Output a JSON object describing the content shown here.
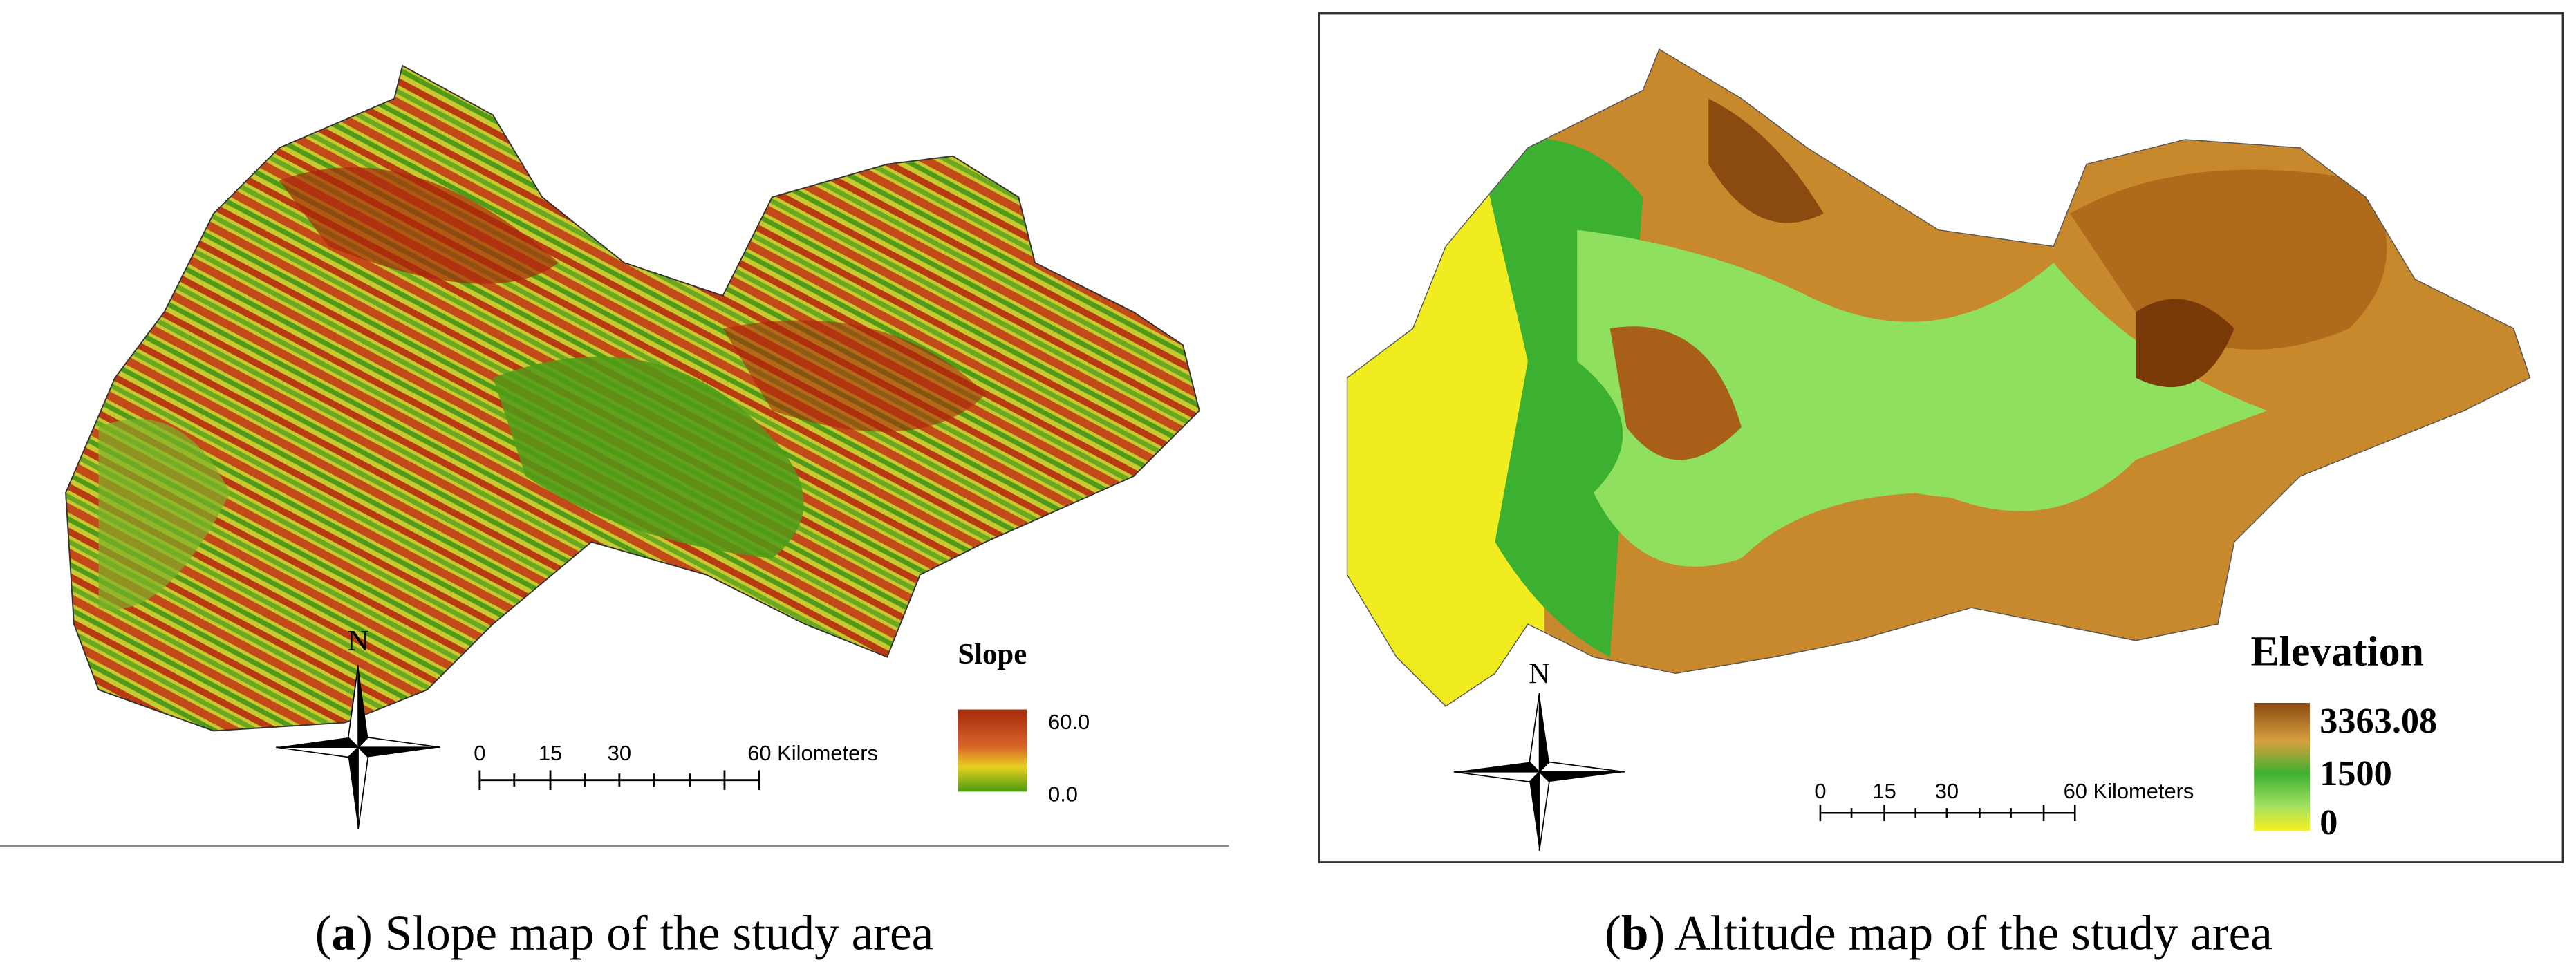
{
  "panel_a": {
    "legend": {
      "title": "Slope",
      "high": "60.0",
      "low": "0.0"
    },
    "north": "N",
    "scale": {
      "ticks": [
        "0",
        "15",
        "30"
      ],
      "end": "60 Kilometers"
    },
    "caption": {
      "open": "(",
      "letter": "a",
      "text": ") Slope map of the study area"
    }
  },
  "panel_b": {
    "legend": {
      "title": "Elevation",
      "high": "3363.08",
      "mid": "1500",
      "low": "0"
    },
    "north": "N",
    "scale": {
      "ticks": [
        "0",
        "15",
        "30"
      ],
      "end": "60 Kilometers"
    },
    "caption": {
      "open": "(",
      "letter": "b",
      "text": ") Altitude map of the study area"
    }
  }
}
